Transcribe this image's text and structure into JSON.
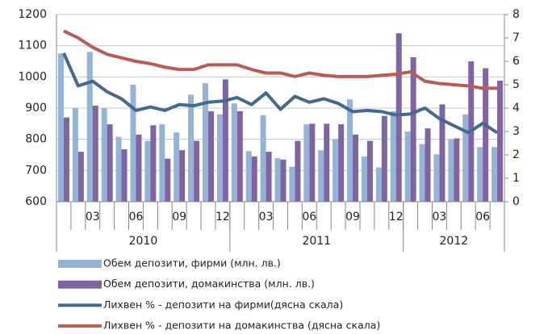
{
  "chart_data": {
    "type": "bar",
    "categories": [
      null,
      null,
      "03",
      null,
      null,
      "06",
      null,
      null,
      "09",
      null,
      null,
      "12",
      null,
      null,
      "03",
      null,
      null,
      "06",
      null,
      null,
      "09",
      null,
      null,
      "12",
      null,
      null,
      "03",
      null,
      null,
      "06",
      null
    ],
    "groups": [
      "2010",
      "2011",
      "2012"
    ],
    "series": [
      {
        "name": "Обем депозити, фирми (млн. лв.)",
        "type": "bar",
        "color": "#95b3d7",
        "values": [
          1075,
          900,
          1080,
          900,
          808,
          975,
          795,
          848,
          822,
          943,
          980,
          880,
          915,
          762,
          877,
          740,
          712,
          848,
          765,
          800,
          928,
          745,
          710,
          890,
          825,
          785,
          752,
          800,
          880,
          775,
          775
        ]
      },
      {
        "name": "Обем депозити, домакинства (млн. лв.)",
        "type": "bar",
        "color": "#8064a2",
        "values": [
          870,
          760,
          908,
          848,
          768,
          815,
          845,
          738,
          765,
          795,
          890,
          992,
          890,
          745,
          760,
          735,
          795,
          850,
          850,
          848,
          815,
          795,
          875,
          1140,
          1063,
          835,
          912,
          803,
          1050,
          1028,
          988
        ]
      },
      {
        "name": "Лихвен % - депозити на фирми(дясна скала)",
        "type": "line",
        "axis": "y2",
        "color": "#44698f",
        "values": [
          6.35,
          4.95,
          5.15,
          4.7,
          4.4,
          3.9,
          4.05,
          3.9,
          4.15,
          4.1,
          4.25,
          4.3,
          4.45,
          4.15,
          4.65,
          3.95,
          4.5,
          4.25,
          4.4,
          4.2,
          3.85,
          3.9,
          3.85,
          3.7,
          3.75,
          4.0,
          3.55,
          3.25,
          2.95,
          3.35,
          2.95
        ]
      },
      {
        "name": "Лихвен %  - депозити на домакинства (дясна скала)",
        "type": "line",
        "axis": "y2",
        "color": "#b85c55",
        "values": [
          7.3,
          7.0,
          6.6,
          6.3,
          6.15,
          6.0,
          5.9,
          5.75,
          5.65,
          5.65,
          5.85,
          5.85,
          5.85,
          5.65,
          5.5,
          5.5,
          5.35,
          5.5,
          5.4,
          5.35,
          5.35,
          5.35,
          5.4,
          5.45,
          5.55,
          5.15,
          5.05,
          5.0,
          4.95,
          4.85,
          4.85
        ]
      }
    ],
    "ylim": [
      600,
      1200
    ],
    "yticks": [
      600,
      700,
      800,
      900,
      1000,
      1100,
      1200
    ],
    "y2lim": [
      0,
      8
    ],
    "y2ticks": [
      0,
      1,
      2,
      3,
      4,
      5,
      6,
      7,
      8
    ],
    "grid": true,
    "legend": "bottom"
  }
}
